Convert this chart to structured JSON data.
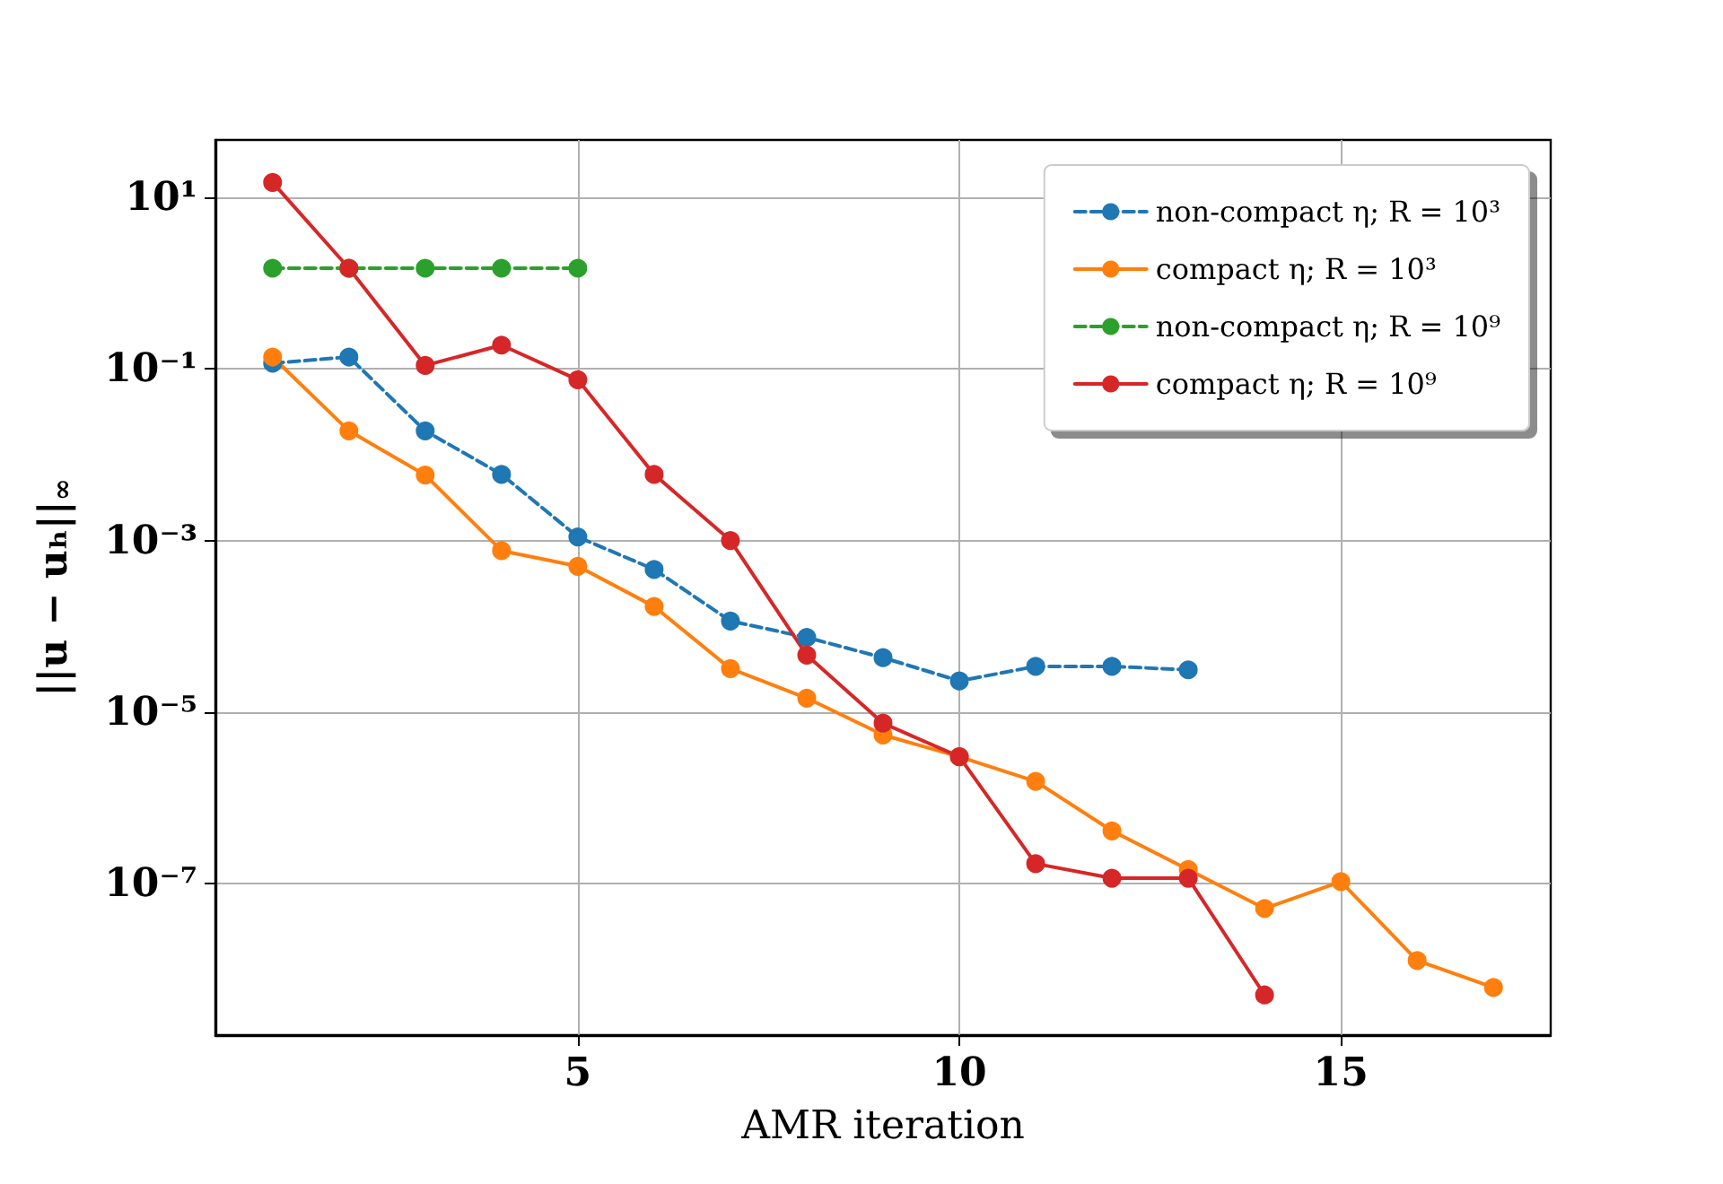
{
  "chart_data": {
    "type": "line",
    "xlabel": "AMR iteration",
    "ylabel": "||u − uₕ||$_{∞}$",
    "x": [
      1,
      2,
      3,
      4,
      5,
      6,
      7,
      8,
      9,
      10,
      11,
      12,
      13,
      14,
      15,
      16,
      17
    ],
    "series": [
      {
        "name": "non-compact η; R = 10³",
        "color": "#1f77b4",
        "line_style": "dashed",
        "marker": "circle",
        "values": [
          0.117,
          0.138,
          0.019,
          0.0059,
          0.0011,
          0.00046,
          0.000115,
          7.4e-05,
          4.3e-05,
          2.3e-05,
          3.4e-05,
          3.4e-05,
          3.1e-05,
          null,
          null,
          null,
          null
        ]
      },
      {
        "name": "compact η; R = 10³",
        "color": "#ff7f0e",
        "line_style": "solid",
        "marker": "circle",
        "values": [
          0.138,
          0.019,
          0.0058,
          0.00076,
          0.0005,
          0.00017,
          3.2e-05,
          1.45e-05,
          5.4e-06,
          3e-06,
          1.55e-06,
          4.1e-07,
          1.45e-07,
          5.1e-08,
          1.05e-07,
          1.26e-08,
          6.1e-09
        ]
      },
      {
        "name": "non-compact η; R = 10⁹",
        "color": "#2ca02c",
        "line_style": "dashed",
        "marker": "circle",
        "values": [
          1.5,
          1.5,
          1.5,
          1.5,
          1.5,
          null,
          null,
          null,
          null,
          null,
          null,
          null,
          null,
          null,
          null,
          null,
          null
        ]
      },
      {
        "name": "compact η; R = 10⁹",
        "color": "#d62728",
        "line_style": "solid",
        "marker": "circle",
        "values": [
          15,
          1.5,
          0.11,
          0.19,
          0.075,
          0.0059,
          0.001,
          4.6e-05,
          7.4e-06,
          3e-06,
          1.7e-07,
          1.15e-07,
          1.15e-07,
          5e-09,
          null,
          null,
          null
        ]
      }
    ],
    "log": "y",
    "xlim": [
      0.25,
      17.75
    ],
    "xticks": [
      5,
      10,
      15
    ],
    "ylim": [
      1.7e-09,
      47
    ],
    "yticks": [
      {
        "value": 10,
        "label": "10¹"
      },
      {
        "value": 0.1,
        "label": "10⁻¹"
      },
      {
        "value": 0.001,
        "label": "10⁻³"
      },
      {
        "value": 1e-05,
        "label": "10⁻⁵"
      },
      {
        "value": 1e-07,
        "label": "10⁻⁷"
      }
    ],
    "grid": true,
    "legend": "top right"
  }
}
